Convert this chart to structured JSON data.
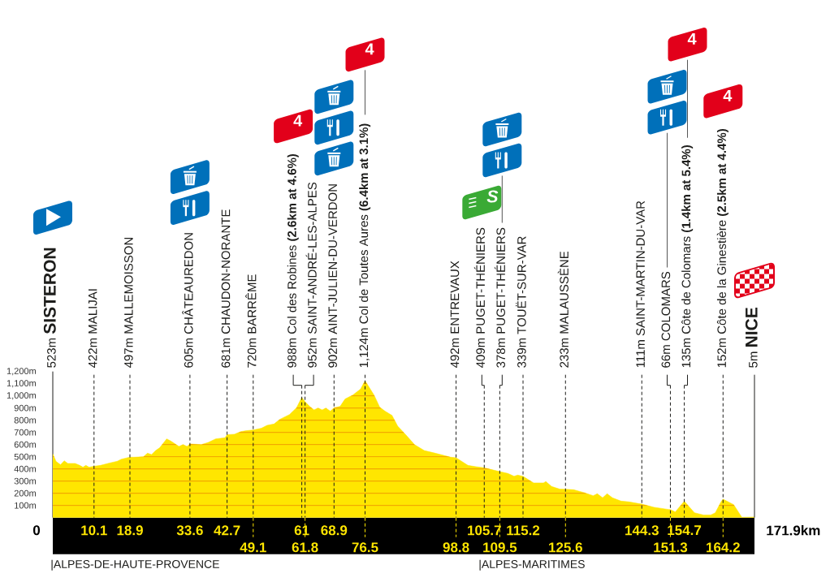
{
  "chart_data": {
    "type": "area",
    "color": "#ffe600",
    "x": [
      0,
      0.8,
      1.9,
      2.8,
      3.7,
      5.5,
      6.6,
      7.4,
      8.1,
      8.9,
      10.1,
      11.7,
      13.7,
      15.8,
      16.8,
      18.9,
      19.8,
      22.2,
      23.2,
      24.2,
      25.2,
      26.2,
      27.9,
      28.9,
      30.9,
      31.9,
      32.9,
      33.6,
      36.4,
      38.1,
      39.9,
      42.2,
      42.7,
      44.5,
      46.1,
      47.4,
      49.1,
      51.1,
      52.5,
      54.2,
      55.6,
      58.0,
      59.7,
      61,
      61.8,
      63.0,
      64.0,
      65.0,
      66.0,
      66.9,
      68.0,
      68.9,
      70.4,
      71.6,
      73.5,
      75.4,
      76.5,
      78.7,
      80.1,
      81.4,
      83.1,
      84.5,
      86.5,
      88.6,
      91.0,
      93.7,
      97.5,
      98.8,
      101.7,
      103.7,
      105.7,
      109.5,
      111.5,
      113.0,
      113.9,
      115.2,
      117.8,
      120.2,
      120.8,
      122.2,
      124.2,
      125.6,
      127.6,
      130.0,
      132.4,
      133.4,
      134.7,
      135.8,
      137.1,
      139.2,
      141.2,
      144.3,
      147.3,
      150.9,
      151.3,
      152.5,
      154.7,
      157.2,
      159.4,
      161.2,
      162.3,
      163.7,
      164.2,
      166.8,
      168.8,
      171.9
    ],
    "values": [
      523,
      462,
      434,
      467,
      445,
      445,
      429,
      414,
      429,
      414,
      422,
      429,
      447,
      463,
      480,
      497,
      496,
      500,
      529,
      518,
      551,
      574,
      647,
      629,
      585,
      600,
      585,
      605,
      600,
      618,
      647,
      656,
      681,
      685,
      707,
      714,
      720,
      734,
      758,
      769,
      807,
      847,
      902,
      988,
      952,
      911,
      885,
      900,
      885,
      900,
      874,
      902,
      914,
      974,
      1007,
      1056,
      1124,
      1007,
      907,
      874,
      840,
      751,
      680,
      600,
      551,
      529,
      496,
      492,
      429,
      418,
      409,
      378,
      363,
      340,
      349,
      339,
      285,
      285,
      296,
      256,
      234,
      233,
      229,
      207,
      180,
      196,
      163,
      196,
      163,
      136,
      129,
      111,
      85,
      67,
      66,
      47,
      135,
      40,
      22,
      22,
      40,
      129,
      152,
      107,
      3,
      5
    ],
    "xlim": [
      0,
      171.9
    ],
    "ylim": [
      0,
      1200
    ],
    "xticks": [
      10.1,
      18.9,
      33.6,
      42.7,
      61,
      68.9,
      105.7,
      115.2,
      144.3,
      154.7
    ],
    "x2lim": [
      0,
      171.9
    ],
    "x2ticks": [
      49.1,
      61.8,
      76.5,
      98.8,
      109.5,
      125.6,
      151.3,
      164.2
    ],
    "yticks": [
      {
        "value": 100,
        "label": "100m"
      },
      {
        "value": 200,
        "label": "200m"
      },
      {
        "value": 300,
        "label": "300m"
      },
      {
        "value": 400,
        "label": "400m"
      },
      {
        "value": 500,
        "label": "500m"
      },
      {
        "value": 600,
        "label": "600m"
      },
      {
        "value": 700,
        "label": "700m"
      },
      {
        "value": 800,
        "label": "800m"
      },
      {
        "value": 900,
        "label": "900m"
      },
      {
        "value": 1000,
        "label": "1,000m"
      },
      {
        "value": 1100,
        "label": "1,100m"
      },
      {
        "value": 1200,
        "label": "1,200m"
      }
    ],
    "grid": "y",
    "ref_lines": [
      {
        "axis": "x",
        "value": 10.1,
        "label": "422m MALIJAI",
        "line_style": "dashed"
      },
      {
        "axis": "x",
        "value": 18.9,
        "label": "497m MALLEMOISSON",
        "line_style": "dashed"
      },
      {
        "axis": "x",
        "value": 33.6,
        "label": "605m CHÂTEAUREDON",
        "line_style": "dashed"
      },
      {
        "axis": "x",
        "value": 42.7,
        "label": "681m CHAUDON-NORANTE",
        "line_style": "dashed"
      },
      {
        "axis": "x",
        "value": 49.1,
        "label": "720m BARRÊME",
        "line_style": "dashed"
      },
      {
        "axis": "x",
        "value": 61,
        "label": "988m Col des Robines **(2.6km at 4.6%)**",
        "line_style": "dashed"
      },
      {
        "axis": "x",
        "value": 61.8,
        "label": "952m SAINT-ANDRÉ-LES-ALPES",
        "line_style": "dashed"
      },
      {
        "axis": "x",
        "value": 68.9,
        "label": "902m AINT-JULIEN-DU-VERDON",
        "line_style": "dashed"
      },
      {
        "axis": "x",
        "value": 76.5,
        "label": "1,124m Col de Toutes Aures **(6.4km at 3.1%)**",
        "line_style": "dashed"
      },
      {
        "axis": "x",
        "value": 98.8,
        "label": "492m ENTREVAUX",
        "line_style": "dashed"
      },
      {
        "axis": "x",
        "value": 105.7,
        "label": "409m PUGET-THÉNIERS",
        "line_style": "dashed"
      },
      {
        "axis": "x",
        "value": 109.5,
        "label": "378m PUGET-THÉNIERS",
        "line_style": "dashed"
      },
      {
        "axis": "x",
        "value": 115.2,
        "label": "339m TOUËT-SUR-VAR",
        "line_style": "dashed"
      },
      {
        "axis": "x",
        "value": 125.6,
        "label": "233m MALAUSSÈNE",
        "line_style": "dashed"
      },
      {
        "axis": "x",
        "value": 144.3,
        "label": "111m SAINT-MARTIN-DU-VAR",
        "line_style": "dashed"
      },
      {
        "axis": "x",
        "value": 151.3,
        "label": "66m COLOMARS",
        "line_style": "dashed"
      },
      {
        "axis": "x",
        "value": 154.7,
        "label": "135m Côte de Colomars **(1.4km at 5.4%)**",
        "line_style": "dashed"
      },
      {
        "axis": "x",
        "value": 164.2,
        "label": "152m Côte de la Ginestière **(2.5km at 4.4%)**",
        "line_style": "dashed"
      },
      {
        "axis": "x",
        "value": 171.9,
        "label": "5m **NICE**",
        "line_style": "solid"
      }
    ],
    "annotations": [
      "523m **SISTERON**",
      "0",
      "171.9km",
      "|ALPES-DE-HAUTE-PROVENCE",
      "|ALPES-MARITIMES",
      "4",
      "4",
      "S",
      "4",
      "4"
    ]
  }
}
